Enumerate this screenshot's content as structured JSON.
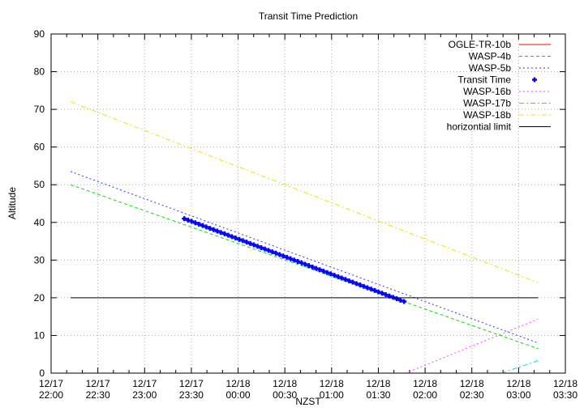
{
  "chart_data": {
    "type": "line",
    "title": "Transit Time Prediction",
    "xlabel": "NZST",
    "ylabel": "Altitude",
    "ylim": [
      0,
      90
    ],
    "yticks": [
      0,
      10,
      20,
      30,
      40,
      50,
      60,
      70,
      80,
      90
    ],
    "xlim_minutes_from_2200": [
      0,
      330
    ],
    "xticks": [
      {
        "date": "12/17",
        "time": "22:00",
        "min": 0
      },
      {
        "date": "12/17",
        "time": "22:30",
        "min": 30
      },
      {
        "date": "12/17",
        "time": "23:00",
        "min": 60
      },
      {
        "date": "12/17",
        "time": "23:30",
        "min": 90
      },
      {
        "date": "12/18",
        "time": "00:00",
        "min": 120
      },
      {
        "date": "12/18",
        "time": "00:30",
        "min": 150
      },
      {
        "date": "12/18",
        "time": "01:00",
        "min": 180
      },
      {
        "date": "12/18",
        "time": "01:30",
        "min": 210
      },
      {
        "date": "12/18",
        "time": "02:00",
        "min": 240
      },
      {
        "date": "12/18",
        "time": "02:30",
        "min": 270
      },
      {
        "date": "12/18",
        "time": "03:00",
        "min": 300
      },
      {
        "date": "12/18",
        "time": "03:30",
        "min": 330
      }
    ],
    "grid": true,
    "legend_position": "top-right",
    "series": [
      {
        "name": "OGLE-TR-10b",
        "color": "#ff0000",
        "dash": "solid",
        "points": []
      },
      {
        "name": "WASP-4b",
        "color": "#00e000",
        "dash": "dashed",
        "points": [
          [
            12.5,
            50.0
          ],
          [
            312.5,
            6.5
          ]
        ]
      },
      {
        "name": "WASP-5b",
        "color": "#3030ff",
        "dash": "dotted",
        "points": [
          [
            12.5,
            53.5
          ],
          [
            312.5,
            8.0
          ]
        ]
      },
      {
        "name": "Transit Time",
        "color": "#0000ff",
        "dash": "markers",
        "points": [
          [
            85.5,
            41.0
          ],
          [
            226.5,
            19.0
          ]
        ]
      },
      {
        "name": "WASP-16b",
        "color": "#ff40ff",
        "dash": "dotted",
        "points": [
          [
            227.5,
            0.0
          ],
          [
            312.5,
            14.3
          ]
        ]
      },
      {
        "name": "WASP-17b",
        "color": "#00e0e0",
        "dash": "dashdot",
        "points": [
          [
            289.0,
            0.0
          ],
          [
            312.5,
            3.3
          ]
        ]
      },
      {
        "name": "WASP-18b",
        "color": "#e8e800",
        "dash": "dashdot",
        "points": [
          [
            12.5,
            72.0
          ],
          [
            312.5,
            24.0
          ]
        ]
      },
      {
        "name": "horizontial limit",
        "color": "#000000",
        "dash": "solid",
        "points": [
          [
            12.5,
            20.0
          ],
          [
            312.5,
            20.0
          ]
        ]
      }
    ]
  }
}
